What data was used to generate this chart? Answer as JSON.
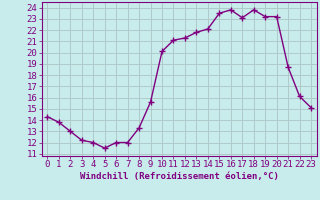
{
  "x": [
    0,
    1,
    2,
    3,
    4,
    5,
    6,
    7,
    8,
    9,
    10,
    11,
    12,
    13,
    14,
    15,
    16,
    17,
    18,
    19,
    20,
    21,
    22,
    23
  ],
  "y": [
    14.3,
    13.8,
    13.0,
    12.2,
    12.0,
    11.5,
    12.0,
    12.0,
    13.3,
    15.6,
    20.1,
    21.1,
    21.3,
    21.8,
    22.1,
    23.5,
    23.8,
    23.1,
    23.8,
    23.2,
    23.2,
    18.7,
    16.1,
    15.1
  ],
  "line_color": "#800080",
  "marker": "+",
  "marker_size": 4,
  "bg_color": "#c8ecec",
  "grid_color": "#b0c8c8",
  "xlabel": "Windchill (Refroidissement éolien,°C)",
  "ylabel_ticks": [
    11,
    12,
    13,
    14,
    15,
    16,
    17,
    18,
    19,
    20,
    21,
    22,
    23,
    24
  ],
  "ylim": [
    10.8,
    24.5
  ],
  "xlim": [
    -0.5,
    23.5
  ],
  "xlabel_fontsize": 6.5,
  "tick_fontsize": 6.5,
  "line_width": 1.0
}
